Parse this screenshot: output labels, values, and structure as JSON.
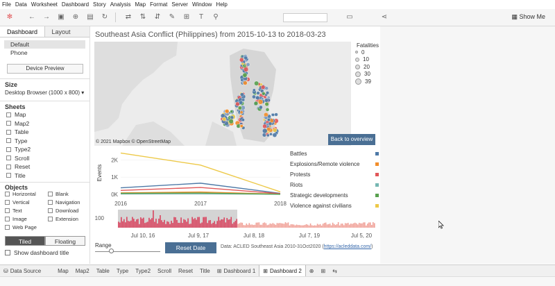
{
  "menu": [
    "File",
    "Data",
    "Worksheet",
    "Dashboard",
    "Story",
    "Analysis",
    "Map",
    "Format",
    "Server",
    "Window",
    "Help"
  ],
  "toolbar": {
    "show_me": "Show Me"
  },
  "left_panel": {
    "tabs": [
      "Dashboard",
      "Layout"
    ],
    "devices": [
      "Default",
      "Phone"
    ],
    "device_preview": "Device Preview",
    "size_title": "Size",
    "size_value": "Desktop Browser (1000 x 800)",
    "sheets_title": "Sheets",
    "sheets": [
      "Map",
      "Map2",
      "Table",
      "Type",
      "Type2",
      "Scroll",
      "Reset",
      "Title"
    ],
    "objects_title": "Objects",
    "objects": [
      "Horizontal",
      "Blank",
      "Vertical",
      "Navigation",
      "Text",
      "Download",
      "Image",
      "Extension",
      "Web Page"
    ],
    "tiled": "Tiled",
    "floating": "Floating",
    "show_title": "Show dashboard title"
  },
  "dashboard": {
    "title": "Southeast Asia Conflict (Philippines) from 2015-10-13 to 2018-03-23",
    "map_credit": "© 2021 Mapbox © OpenStreetMap",
    "back_button": "Back to overview",
    "fatalities_legend": {
      "title": "Fatalities",
      "values": [
        "0",
        "10",
        "20",
        "30",
        "39"
      ]
    },
    "reset_button": "Reset Date",
    "range_label": "Range",
    "data_source_prefix": "Data: ACLED Southeast Asia 2010-31Oct2020 (",
    "data_source_link": "https://acleddata.com/",
    "data_source_suffix": ")"
  },
  "chart_data": [
    {
      "type": "line",
      "x": [
        2016,
        2017,
        2018
      ],
      "x_tick_labels": [
        "2016",
        "2017",
        "2018"
      ],
      "ylabel": "Events",
      "y_tick_labels": [
        "0K",
        "1K",
        "2K"
      ],
      "ylim": [
        0,
        2500
      ],
      "series": [
        {
          "name": "Battles",
          "color": "#4e79a7",
          "values": [
            380,
            650,
            60
          ]
        },
        {
          "name": "Explosions/Remote violence",
          "color": "#f28e2b",
          "values": [
            90,
            140,
            15
          ]
        },
        {
          "name": "Protests",
          "color": "#e15759",
          "values": [
            230,
            400,
            40
          ]
        },
        {
          "name": "Riots",
          "color": "#76b7b2",
          "values": [
            30,
            40,
            5
          ]
        },
        {
          "name": "Strategic developments",
          "color": "#59a14f",
          "values": [
            60,
            80,
            10
          ]
        },
        {
          "name": "Violence against civilians",
          "color": "#edc948",
          "values": [
            2400,
            1700,
            150
          ]
        }
      ],
      "legend": "right"
    },
    {
      "type": "bar",
      "y_tick_labels": [
        "100"
      ],
      "x_tick_labels": [
        "Jul 10, 16",
        "Jul 9, 17",
        "Jul 8, 18",
        "Jul 7, 19",
        "Jul 5, 20"
      ],
      "highlight_color": "#d9435e",
      "dim_color": "#f0a097"
    }
  ],
  "bottom_tabs": [
    "Data Source",
    "Map",
    "Map2",
    "Table",
    "Type",
    "Type2",
    "Scroll",
    "Reset",
    "Title",
    "Dashboard 1",
    "Dashboard 2"
  ]
}
